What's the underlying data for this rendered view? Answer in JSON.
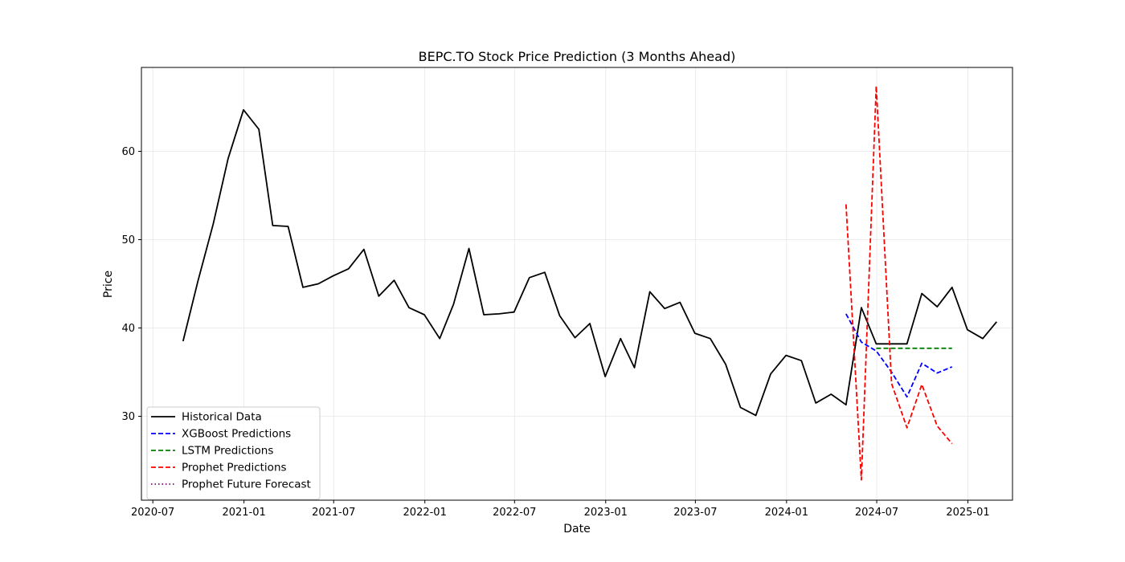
{
  "chart_data": {
    "type": "line",
    "title": "BEPC.TO Stock Price Prediction (3 Months Ahead)",
    "xlabel": "Date",
    "ylabel": "Price",
    "x_ticks": [
      "2020-07",
      "2021-01",
      "2021-07",
      "2022-01",
      "2022-07",
      "2023-01",
      "2023-07",
      "2024-01",
      "2024-07",
      "2025-01"
    ],
    "y_ticks": [
      30,
      40,
      50,
      60
    ],
    "xlim": [
      "2020-06-08",
      "2025-04-01"
    ],
    "ylim": [
      20.5,
      69.5
    ],
    "grid": true,
    "legend_position": "lower-left",
    "series": [
      {
        "name": "Historical Data",
        "color": "#000000",
        "style": "solid",
        "x": [
          "2020-08-31",
          "2020-09-30",
          "2020-10-31",
          "2020-11-30",
          "2020-12-31",
          "2021-01-31",
          "2021-02-28",
          "2021-03-31",
          "2021-04-30",
          "2021-05-31",
          "2021-06-30",
          "2021-07-31",
          "2021-08-31",
          "2021-09-30",
          "2021-10-31",
          "2021-11-30",
          "2021-12-31",
          "2022-01-31",
          "2022-02-28",
          "2022-03-31",
          "2022-04-30",
          "2022-05-31",
          "2022-06-30",
          "2022-07-31",
          "2022-08-31",
          "2022-09-30",
          "2022-10-31",
          "2022-11-30",
          "2022-12-31",
          "2023-01-31",
          "2023-02-28",
          "2023-03-31",
          "2023-04-30",
          "2023-05-31",
          "2023-06-30",
          "2023-07-31",
          "2023-08-31",
          "2023-09-30",
          "2023-10-31",
          "2023-11-30",
          "2023-12-31",
          "2024-01-31",
          "2024-02-29",
          "2024-03-31",
          "2024-04-30",
          "2024-05-31",
          "2024-06-30",
          "2024-07-31",
          "2024-08-31",
          "2024-09-30",
          "2024-10-31",
          "2024-11-30",
          "2024-12-31",
          "2025-01-31",
          "2025-02-28"
        ],
        "values": [
          38.5,
          45.3,
          51.8,
          59.2,
          64.7,
          62.5,
          51.6,
          51.5,
          44.6,
          45.0,
          45.9,
          46.7,
          48.9,
          43.6,
          45.4,
          42.3,
          41.5,
          38.8,
          42.7,
          49.0,
          41.5,
          41.6,
          41.8,
          45.7,
          46.3,
          41.4,
          38.9,
          40.5,
          34.5,
          38.8,
          35.5,
          44.1,
          42.2,
          42.9,
          39.4,
          38.8,
          35.9,
          31.0,
          30.1,
          34.8,
          36.9,
          36.3,
          31.5,
          32.5,
          31.3,
          42.3,
          38.2,
          38.2,
          38.2,
          43.9,
          42.4,
          44.6,
          39.8,
          38.8,
          40.7
        ]
      },
      {
        "name": "XGBoost Predictions",
        "color": "#0000ff",
        "style": "dashed",
        "x": [
          "2024-04-30",
          "2024-05-31",
          "2024-06-30",
          "2024-07-31",
          "2024-08-31",
          "2024-09-30",
          "2024-10-31",
          "2024-11-30"
        ],
        "values": [
          41.6,
          38.4,
          37.4,
          35.0,
          32.2,
          36.0,
          34.9,
          35.6
        ]
      },
      {
        "name": "LSTM Predictions",
        "color": "#008000",
        "style": "dashed",
        "x": [
          "2024-06-30",
          "2024-07-31",
          "2024-08-31",
          "2024-09-30",
          "2024-10-31",
          "2024-11-30"
        ],
        "values": [
          37.7,
          37.7,
          37.7,
          37.7,
          37.7,
          37.7
        ]
      },
      {
        "name": "Prophet Predictions",
        "color": "#ff0000",
        "style": "dashed",
        "x": [
          "2024-04-30",
          "2024-05-31",
          "2024-06-30",
          "2024-07-31",
          "2024-08-31",
          "2024-09-30",
          "2024-10-31",
          "2024-11-30"
        ],
        "values": [
          54.0,
          22.8,
          67.4,
          33.7,
          28.7,
          33.6,
          28.9,
          26.9
        ]
      },
      {
        "name": "Prophet Future Forecast",
        "color": "#800080",
        "style": "dotted",
        "x": [],
        "values": []
      }
    ]
  }
}
